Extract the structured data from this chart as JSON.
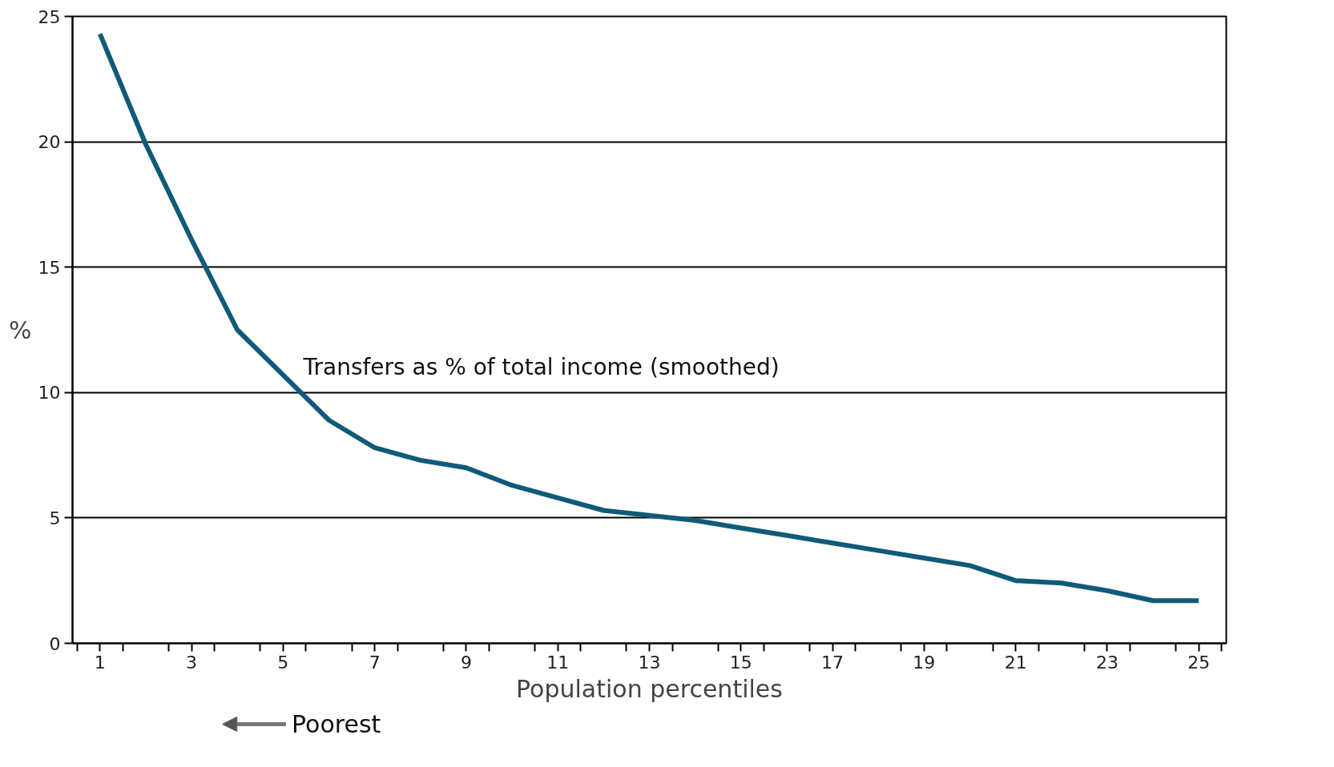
{
  "chart_data": {
    "type": "line",
    "xlabel": "Population percentiles",
    "ylabel": "%",
    "x": [
      1,
      2,
      3,
      4,
      5,
      6,
      7,
      8,
      9,
      10,
      11,
      12,
      13,
      14,
      15,
      16,
      17,
      18,
      19,
      20,
      21,
      22,
      23,
      24,
      25
    ],
    "series": [
      {
        "color": "#0f5a78",
        "values": [
          24.3,
          19.9,
          16.1,
          12.5,
          10.7,
          8.9,
          7.8,
          7.3,
          7.0,
          6.3,
          5.8,
          5.3,
          5.1,
          4.9,
          4.6,
          4.3,
          4.0,
          3.7,
          3.4,
          3.1,
          2.5,
          2.4,
          2.1,
          1.7,
          1.7
        ]
      }
    ],
    "annotations": [
      "Transfers as % of total income (smoothed)",
      "Poorest"
    ],
    "xlim": [
      0.4,
      25.6
    ],
    "xticks": [
      {
        "value": 0.5,
        "label": null
      },
      1,
      {
        "value": 1.5,
        "label": null
      },
      {
        "value": 2.5,
        "label": null
      },
      3,
      {
        "value": 3.5,
        "label": null
      },
      {
        "value": 4.5,
        "label": null
      },
      5,
      {
        "value": 5.5,
        "label": null
      },
      {
        "value": 6.5,
        "label": null
      },
      7,
      {
        "value": 7.5,
        "label": null
      },
      {
        "value": 8.5,
        "label": null
      },
      9,
      {
        "value": 9.5,
        "label": null
      },
      {
        "value": 10.5,
        "label": null
      },
      11,
      {
        "value": 11.5,
        "label": null
      },
      {
        "value": 12.5,
        "label": null
      },
      13,
      {
        "value": 13.5,
        "label": null
      },
      {
        "value": 14.5,
        "label": null
      },
      15,
      {
        "value": 15.5,
        "label": null
      },
      {
        "value": 16.5,
        "label": null
      },
      17,
      {
        "value": 17.5,
        "label": null
      },
      {
        "value": 18.5,
        "label": null
      },
      19,
      {
        "value": 19.5,
        "label": null
      },
      {
        "value": 20.5,
        "label": null
      },
      21,
      {
        "value": 21.5,
        "label": null
      },
      {
        "value": 22.5,
        "label": null
      },
      23,
      {
        "value": 23.5,
        "label": null
      },
      {
        "value": 24.5,
        "label": null
      },
      25,
      {
        "value": 25.5,
        "label": null
      }
    ],
    "ylim": [
      0,
      25
    ],
    "yticks": [
      0,
      5,
      10,
      15,
      20,
      25
    ],
    "grid": "y",
    "marker": "none",
    "line_style": "solid"
  }
}
